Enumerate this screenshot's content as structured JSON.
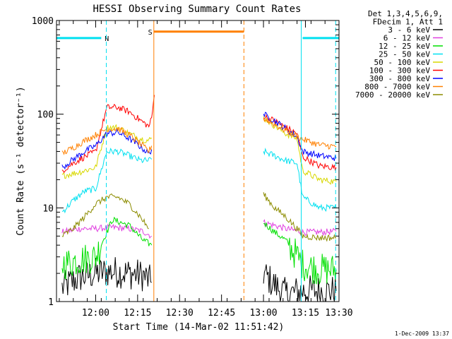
{
  "chart_data": {
    "type": "line",
    "title": "HESSI Observing Summary Count Rates",
    "xlabel": "Start Time (14-Mar-02 11:51:42)",
    "ylabel": "Count Rate (s⁻¹ detector⁻¹)",
    "y_scale": "log",
    "xlim_minutes": [
      -6,
      95
    ],
    "ylim": [
      1,
      1000
    ],
    "x_ticks": [
      {
        "t": 8,
        "label": "12:00"
      },
      {
        "t": 23,
        "label": "12:15"
      },
      {
        "t": 38,
        "label": "12:30"
      },
      {
        "t": 53,
        "label": "12:45"
      },
      {
        "t": 68,
        "label": "13:00"
      },
      {
        "t": 83,
        "label": "13:15"
      },
      {
        "t": 98,
        "label": "13:30"
      }
    ],
    "y_ticks": [
      {
        "v": 1,
        "label": "1"
      },
      {
        "v": 10,
        "label": "10"
      },
      {
        "v": 100,
        "label": "100"
      },
      {
        "v": 1000,
        "label": "1000"
      }
    ],
    "legend": {
      "placement": "right",
      "header": [
        "Det 1,3,4,5,6,9,",
        "FDecim 1, Att 1"
      ]
    },
    "series": [
      {
        "name": "3 - 6 keV",
        "color": "#000000",
        "points": [
          [
            -4,
            1.4
          ],
          [
            2,
            1.8
          ],
          [
            8,
            2.0
          ],
          [
            14,
            2.1
          ],
          [
            20,
            2.0
          ],
          [
            25,
            1.9
          ],
          [
            28,
            1.6
          ],
          [
            68,
            2.0
          ],
          [
            72,
            1.5
          ],
          [
            76,
            1.2
          ],
          [
            82,
            1.3
          ],
          [
            88,
            1.3
          ],
          [
            94,
            1.3
          ]
        ]
      },
      {
        "name": "6 - 12 keV",
        "color": "#e040e0",
        "points": [
          [
            -4,
            5.5
          ],
          [
            2,
            6.0
          ],
          [
            8,
            6.0
          ],
          [
            14,
            6.2
          ],
          [
            20,
            6.0
          ],
          [
            25,
            5.6
          ],
          [
            28,
            5.0
          ],
          [
            68,
            7.0
          ],
          [
            72,
            6.5
          ],
          [
            76,
            6.0
          ],
          [
            82,
            5.5
          ],
          [
            88,
            5.5
          ],
          [
            94,
            5.6
          ]
        ]
      },
      {
        "name": "12 - 25 keV",
        "color": "#00e000",
        "points": [
          [
            -4,
            2.5
          ],
          [
            2,
            2.8
          ],
          [
            8,
            3.0
          ],
          [
            14,
            7.5
          ],
          [
            20,
            6.5
          ],
          [
            25,
            4.5
          ],
          [
            28,
            4.0
          ],
          [
            68,
            7.0
          ],
          [
            72,
            5.5
          ],
          [
            76,
            4.5
          ],
          [
            82,
            2.5
          ],
          [
            88,
            2.2
          ],
          [
            94,
            2.2
          ]
        ]
      },
      {
        "name": "25 - 50 keV",
        "color": "#00e0f0",
        "points": [
          [
            -4,
            9
          ],
          [
            0,
            12
          ],
          [
            4,
            15
          ],
          [
            8,
            16
          ],
          [
            12,
            40
          ],
          [
            16,
            40
          ],
          [
            20,
            36
          ],
          [
            24,
            32
          ],
          [
            27,
            32
          ],
          [
            28,
            33
          ],
          [
            68,
            40
          ],
          [
            72,
            36
          ],
          [
            76,
            32
          ],
          [
            80,
            30
          ],
          [
            82,
            13
          ],
          [
            88,
            10
          ],
          [
            94,
            10
          ]
        ]
      },
      {
        "name": "50 - 100 keV",
        "color": "#d8d800",
        "points": [
          [
            -4,
            22
          ],
          [
            2,
            24
          ],
          [
            8,
            27
          ],
          [
            12,
            72
          ],
          [
            16,
            72
          ],
          [
            20,
            62
          ],
          [
            24,
            55
          ],
          [
            27,
            52
          ],
          [
            28,
            56
          ],
          [
            68,
            92
          ],
          [
            72,
            75
          ],
          [
            76,
            62
          ],
          [
            80,
            55
          ],
          [
            82,
            25
          ],
          [
            88,
            20
          ],
          [
            94,
            19
          ]
        ]
      },
      {
        "name": "100 - 300 keV",
        "color": "#ff0000",
        "points": [
          [
            -4,
            25
          ],
          [
            0,
            30
          ],
          [
            4,
            35
          ],
          [
            8,
            40
          ],
          [
            12,
            118
          ],
          [
            16,
            118
          ],
          [
            20,
            106
          ],
          [
            24,
            86
          ],
          [
            27,
            74
          ],
          [
            28,
            90
          ],
          [
            29,
            160
          ],
          [
            68,
            95
          ],
          [
            72,
            85
          ],
          [
            76,
            72
          ],
          [
            80,
            62
          ],
          [
            82,
            35
          ],
          [
            88,
            28
          ],
          [
            94,
            27
          ]
        ]
      },
      {
        "name": "300 - 800 keV",
        "color": "#0000ff",
        "points": [
          [
            -4,
            27
          ],
          [
            0,
            33
          ],
          [
            4,
            40
          ],
          [
            8,
            46
          ],
          [
            12,
            62
          ],
          [
            16,
            64
          ],
          [
            20,
            55
          ],
          [
            24,
            45
          ],
          [
            27,
            38
          ],
          [
            28,
            42
          ],
          [
            68,
            100
          ],
          [
            72,
            85
          ],
          [
            76,
            70
          ],
          [
            80,
            58
          ],
          [
            82,
            40
          ],
          [
            88,
            36
          ],
          [
            94,
            34
          ]
        ]
      },
      {
        "name": "800 - 7000 keV",
        "color": "#ff8000",
        "points": [
          [
            -4,
            38
          ],
          [
            0,
            44
          ],
          [
            4,
            52
          ],
          [
            8,
            60
          ],
          [
            12,
            70
          ],
          [
            16,
            70
          ],
          [
            20,
            60
          ],
          [
            24,
            48
          ],
          [
            27,
            40
          ],
          [
            28,
            46
          ],
          [
            68,
            90
          ],
          [
            72,
            78
          ],
          [
            76,
            67
          ],
          [
            80,
            58
          ],
          [
            82,
            54
          ],
          [
            88,
            47
          ],
          [
            94,
            45
          ]
        ]
      },
      {
        "name": "7000 - 20000 keV",
        "color": "#8c8c00",
        "points": [
          [
            -4,
            5
          ],
          [
            0,
            6
          ],
          [
            4,
            8
          ],
          [
            8,
            11
          ],
          [
            12,
            13
          ],
          [
            16,
            13
          ],
          [
            20,
            11
          ],
          [
            24,
            8
          ],
          [
            27,
            6
          ],
          [
            68,
            14
          ],
          [
            72,
            10
          ],
          [
            76,
            8
          ],
          [
            80,
            6
          ],
          [
            82,
            5.0
          ],
          [
            88,
            4.8
          ],
          [
            94,
            4.8
          ]
        ]
      }
    ],
    "annotations": [
      {
        "kind": "interval-bar",
        "label": "N",
        "color": "#00e0f0",
        "t_start": -6,
        "t_end": 10,
        "y": 650,
        "label_at": 12
      },
      {
        "kind": "interval-bar",
        "label": "",
        "color": "#00e0f0",
        "t_start": 82,
        "t_end": 95,
        "y": 650
      },
      {
        "kind": "interval-bar",
        "label": "S",
        "color": "#ff8000",
        "t_start": 28.8,
        "t_end": 61,
        "y": 760,
        "label_at": 27.5
      },
      {
        "kind": "vline",
        "style": "solid",
        "color": "#00e0f0",
        "t": -6
      },
      {
        "kind": "vline",
        "style": "dashed",
        "color": "#00e0f0",
        "t": 11.8
      },
      {
        "kind": "vline",
        "style": "solid",
        "color": "#00e0f0",
        "t": 81.5
      },
      {
        "kind": "vline",
        "style": "dashed",
        "color": "#00e0f0",
        "t": 93.8
      },
      {
        "kind": "vline",
        "style": "solid",
        "color": "#ff8000",
        "t": 28.8
      },
      {
        "kind": "vline",
        "style": "dashed",
        "color": "#ff8000",
        "t": 61
      }
    ]
  },
  "footer": {
    "timestamp": "1-Dec-2009 13:37"
  }
}
